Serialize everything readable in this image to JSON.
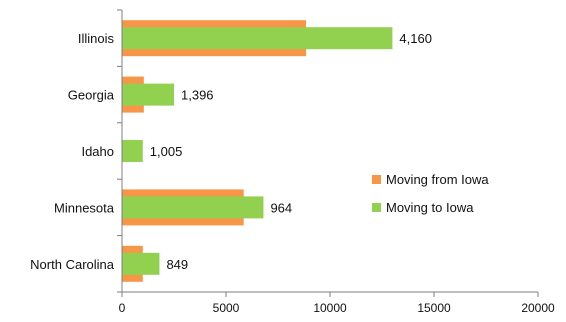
{
  "chart_data": {
    "type": "bar",
    "orientation": "horizontal",
    "categories": [
      "Illinois",
      "Georgia",
      "Idaho",
      "Minnesota",
      "North Carolina"
    ],
    "series": [
      {
        "name": "Moving from Iowa",
        "color": "#F79646",
        "values": [
          8850,
          1050,
          0,
          5850,
          1000
        ]
      },
      {
        "name": "Moving to Iowa",
        "color": "#92D050",
        "values": [
          13000,
          2500,
          1000,
          6800,
          1800
        ]
      }
    ],
    "data_labels": [
      "4,160",
      "1,396",
      "1,005",
      "964",
      "849"
    ],
    "xlim": [
      0,
      20000
    ],
    "x_ticks": [
      "0",
      "5000",
      "10000",
      "15000",
      "20000"
    ],
    "legend": {
      "placement": "right",
      "entries": [
        "Moving from Iowa",
        "Moving to Iowa"
      ]
    },
    "grid": false,
    "title": "",
    "xlabel": "",
    "ylabel": ""
  }
}
